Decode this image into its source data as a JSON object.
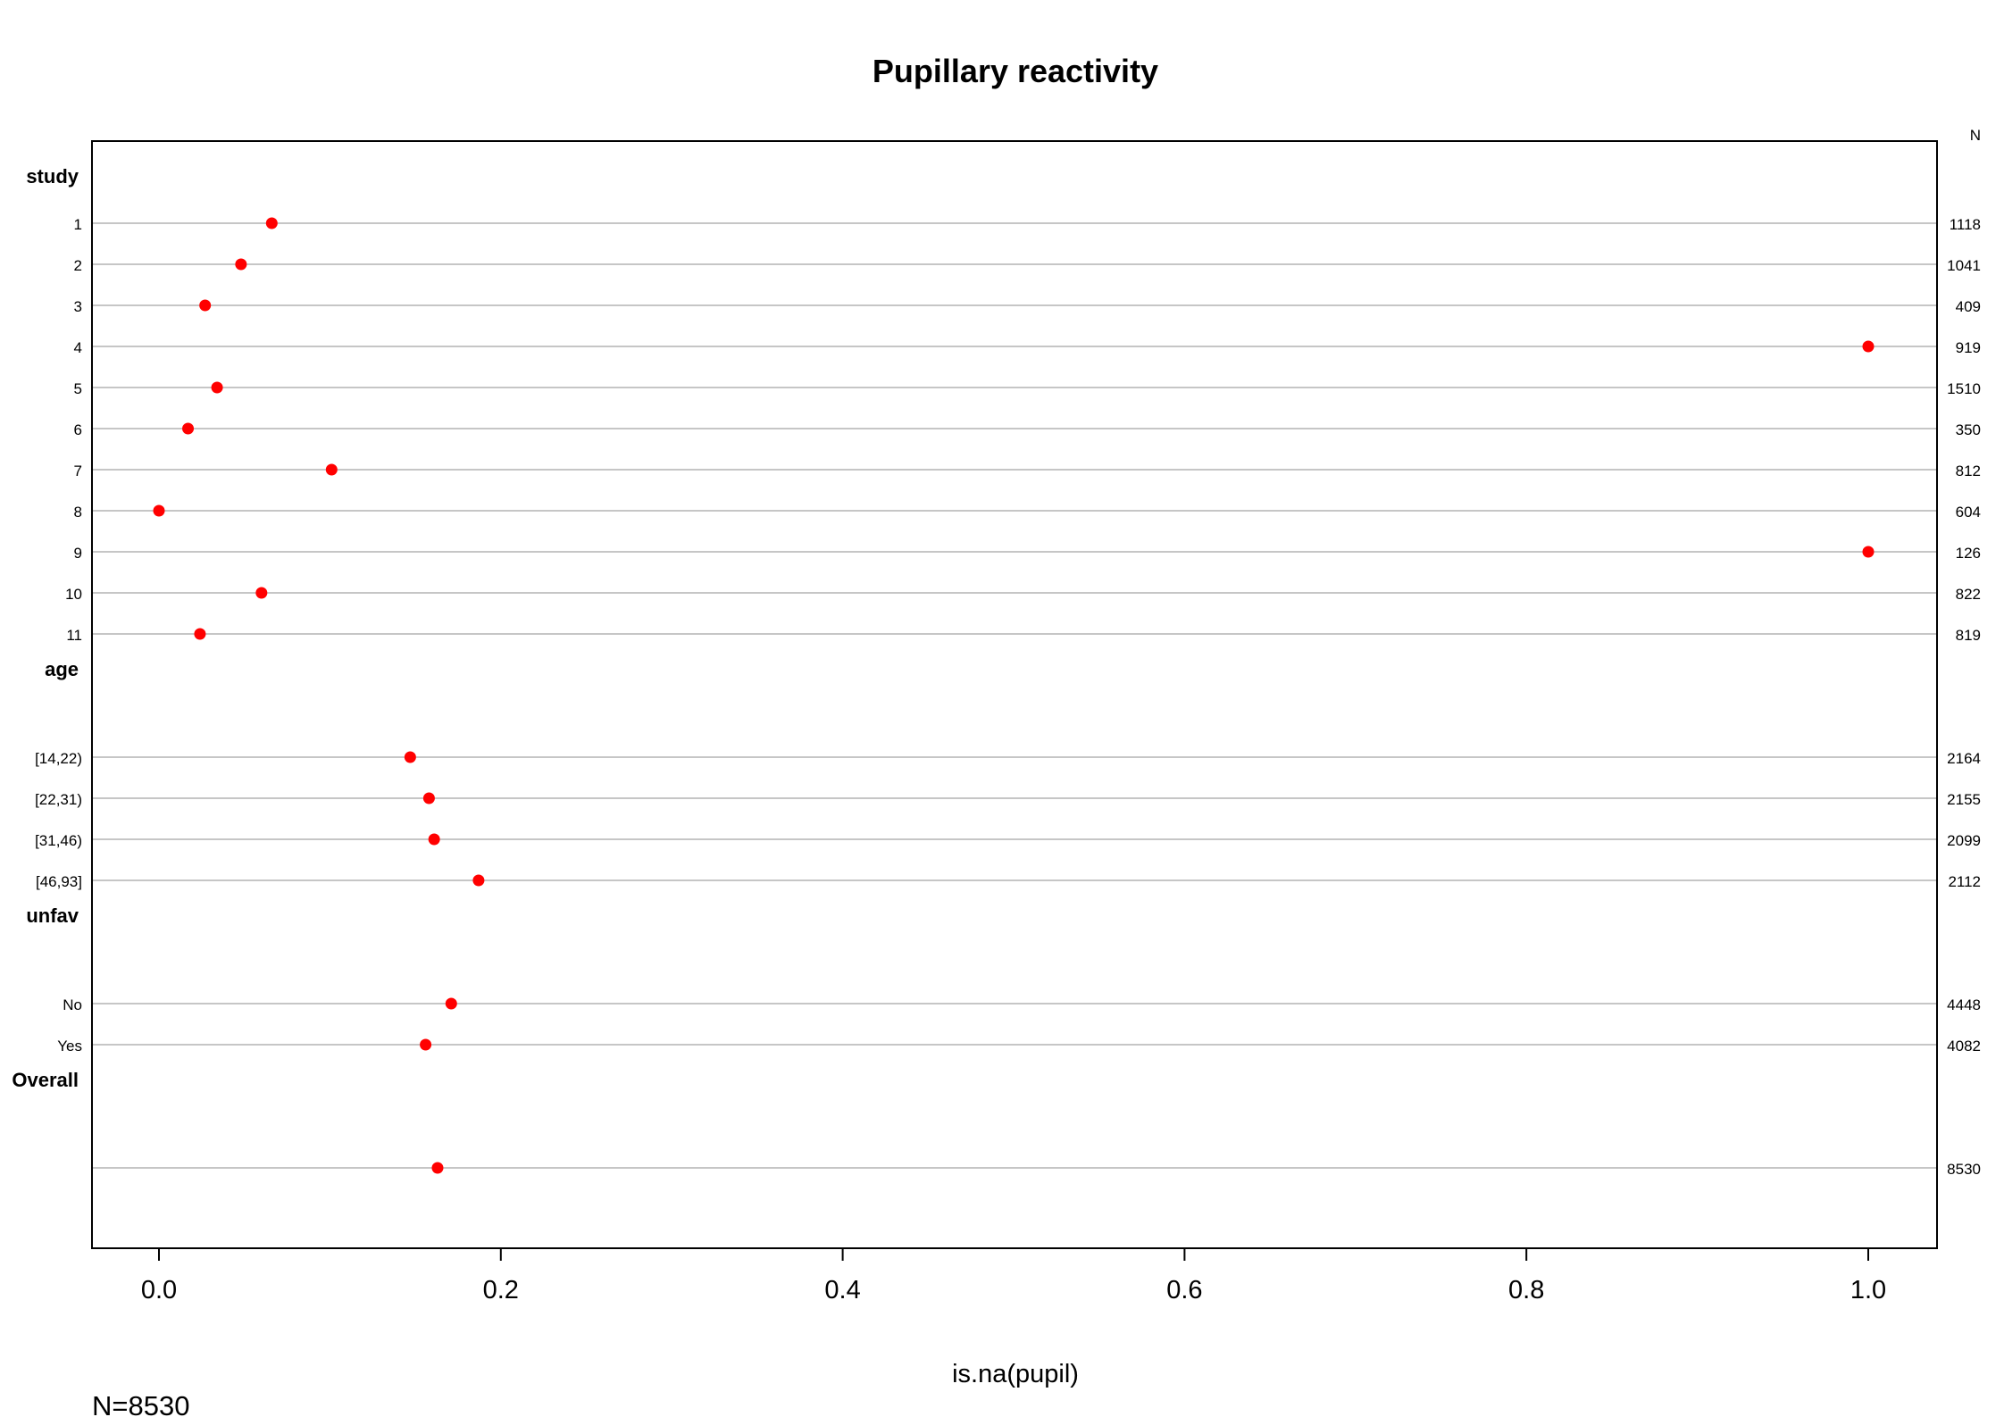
{
  "chart_data": {
    "type": "dotplot",
    "title": "Pupillary reactivity",
    "xlabel": "is.na(pupil)",
    "xlim": [
      0,
      1
    ],
    "xticks": [
      "0.0",
      "0.2",
      "0.4",
      "0.6",
      "0.8",
      "1.0"
    ],
    "n_header": "N",
    "footnote": "N=8530",
    "point_color": "#ff0000",
    "groups": [
      {
        "name": "study",
        "rows": [
          {
            "label": "1",
            "value": 0.066,
            "n": "1118"
          },
          {
            "label": "2",
            "value": 0.048,
            "n": "1041"
          },
          {
            "label": "3",
            "value": 0.027,
            "n": "409"
          },
          {
            "label": "4",
            "value": 1.0,
            "n": "919"
          },
          {
            "label": "5",
            "value": 0.034,
            "n": "1510"
          },
          {
            "label": "6",
            "value": 0.017,
            "n": "350"
          },
          {
            "label": "7",
            "value": 0.101,
            "n": "812"
          },
          {
            "label": "8",
            "value": 0.0,
            "n": "604"
          },
          {
            "label": "9",
            "value": 1.0,
            "n": "126"
          },
          {
            "label": "10",
            "value": 0.06,
            "n": "822"
          },
          {
            "label": "11",
            "value": 0.024,
            "n": "819"
          }
        ]
      },
      {
        "name": "age",
        "rows": [
          {
            "label": "[14,22)",
            "value": 0.147,
            "n": "2164"
          },
          {
            "label": "[22,31)",
            "value": 0.158,
            "n": "2155"
          },
          {
            "label": "[31,46)",
            "value": 0.161,
            "n": "2099"
          },
          {
            "label": "[46,93]",
            "value": 0.187,
            "n": "2112"
          }
        ]
      },
      {
        "name": "unfav",
        "rows": [
          {
            "label": "No",
            "value": 0.171,
            "n": "4448"
          },
          {
            "label": "Yes",
            "value": 0.156,
            "n": "4082"
          }
        ]
      },
      {
        "name": "Overall",
        "rows": [
          {
            "label": "",
            "value": 0.163,
            "n": "8530"
          }
        ]
      }
    ]
  }
}
